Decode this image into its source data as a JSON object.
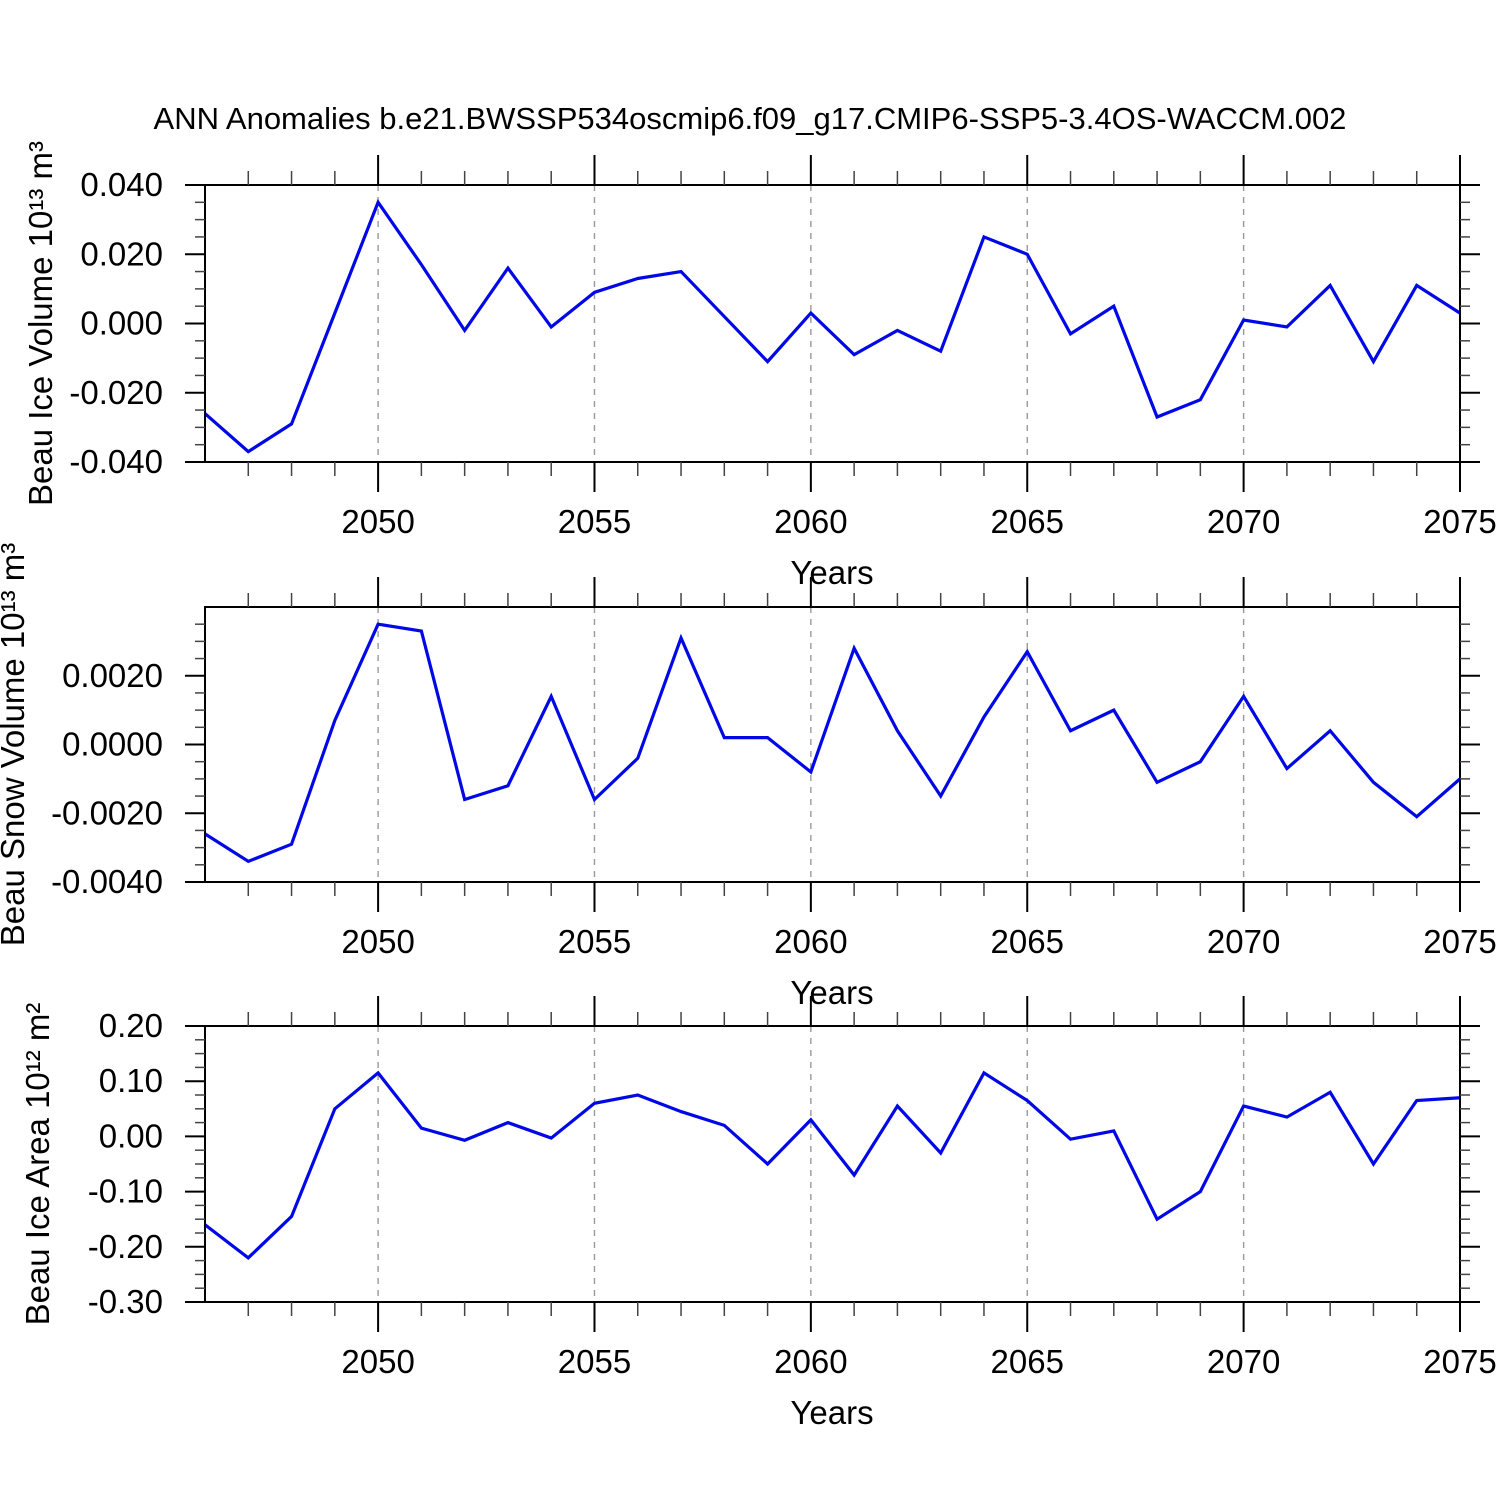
{
  "title": "ANN Anomalies b.e21.BWSSP534oscmip6.f09_g17.CMIP6-SSP5-3.4OS-WACCM.002",
  "colors": {
    "line": "#0008e6",
    "axis": "#000000",
    "minor_tick": "#444444",
    "grid": "#999999",
    "background": "#ffffff"
  },
  "chart_data": {
    "type": "line",
    "x_label": "Years",
    "x_range": [
      2046,
      2075
    ],
    "x": [
      2046,
      2047,
      2048,
      2049,
      2050,
      2051,
      2052,
      2053,
      2054,
      2055,
      2056,
      2057,
      2058,
      2059,
      2060,
      2061,
      2062,
      2063,
      2064,
      2065,
      2066,
      2067,
      2068,
      2069,
      2070,
      2071,
      2072,
      2073,
      2074,
      2075
    ],
    "x_major_ticks": [
      2050,
      2055,
      2060,
      2065,
      2070,
      2075
    ],
    "x_major_tick_labels": [
      "2050",
      "2055",
      "2060",
      "2065",
      "2070",
      "2075"
    ],
    "x_minor_step": 1,
    "x_gridlines": [
      2050,
      2055,
      2060,
      2065,
      2070
    ],
    "legend": "none",
    "grid_style": "vertical-dashed",
    "panels": [
      {
        "name": "beau-ice-volume",
        "ylabel": "Beau Ice Volume 10¹³ m³",
        "ylim": [
          -0.04,
          0.04
        ],
        "ytick_values": [
          0.04,
          0.02,
          0.0,
          -0.02,
          -0.04
        ],
        "ytick_labels": [
          "0.040",
          "0.020",
          "0.000",
          "-0.020",
          "-0.040"
        ],
        "y_minor_step": 0.005,
        "values": [
          -0.026,
          -0.037,
          -0.029,
          0.003,
          0.035,
          0.017,
          -0.002,
          0.016,
          -0.001,
          0.009,
          0.013,
          0.015,
          0.002,
          -0.011,
          0.003,
          -0.009,
          -0.002,
          -0.008,
          0.025,
          0.02,
          -0.003,
          0.005,
          -0.027,
          -0.022,
          0.001,
          -0.001,
          0.011,
          -0.011,
          0.011,
          0.003
        ]
      },
      {
        "name": "beau-snow-volume",
        "ylabel": "Beau Snow Volume 10¹³ m³",
        "ylim": [
          -0.004,
          0.004
        ],
        "ytick_values": [
          0.002,
          0.0,
          -0.002,
          -0.004
        ],
        "ytick_labels": [
          "0.0020",
          "0.0000",
          "-0.0020",
          "-0.0040"
        ],
        "y_minor_step": 0.0005,
        "values": [
          -0.0026,
          -0.0034,
          -0.0029,
          0.0007,
          0.0035,
          0.0033,
          -0.0016,
          -0.0012,
          0.0014,
          -0.0016,
          -0.0004,
          0.0031,
          0.0002,
          0.0002,
          -0.0008,
          0.0028,
          0.0004,
          -0.0015,
          0.0008,
          0.0027,
          0.0004,
          0.001,
          -0.0011,
          -0.0005,
          0.0014,
          -0.0007,
          0.0004,
          -0.0011,
          -0.0021,
          -0.001
        ]
      },
      {
        "name": "beau-ice-area",
        "ylabel": "Beau Ice Area 10¹² m²",
        "ylim": [
          -0.3,
          0.2
        ],
        "ytick_values": [
          0.2,
          0.1,
          0.0,
          -0.1,
          -0.2,
          -0.3
        ],
        "ytick_labels": [
          "0.20",
          "0.10",
          "0.00",
          "-0.10",
          "-0.20",
          "-0.30"
        ],
        "y_minor_step": 0.025,
        "values": [
          -0.16,
          -0.22,
          -0.145,
          0.05,
          0.115,
          0.015,
          -0.007,
          0.025,
          -0.003,
          0.06,
          0.075,
          0.045,
          0.02,
          -0.05,
          0.03,
          -0.07,
          0.055,
          -0.03,
          0.115,
          0.065,
          -0.005,
          0.01,
          -0.15,
          -0.1,
          0.055,
          0.035,
          0.08,
          -0.05,
          0.065,
          0.07
        ]
      }
    ]
  }
}
